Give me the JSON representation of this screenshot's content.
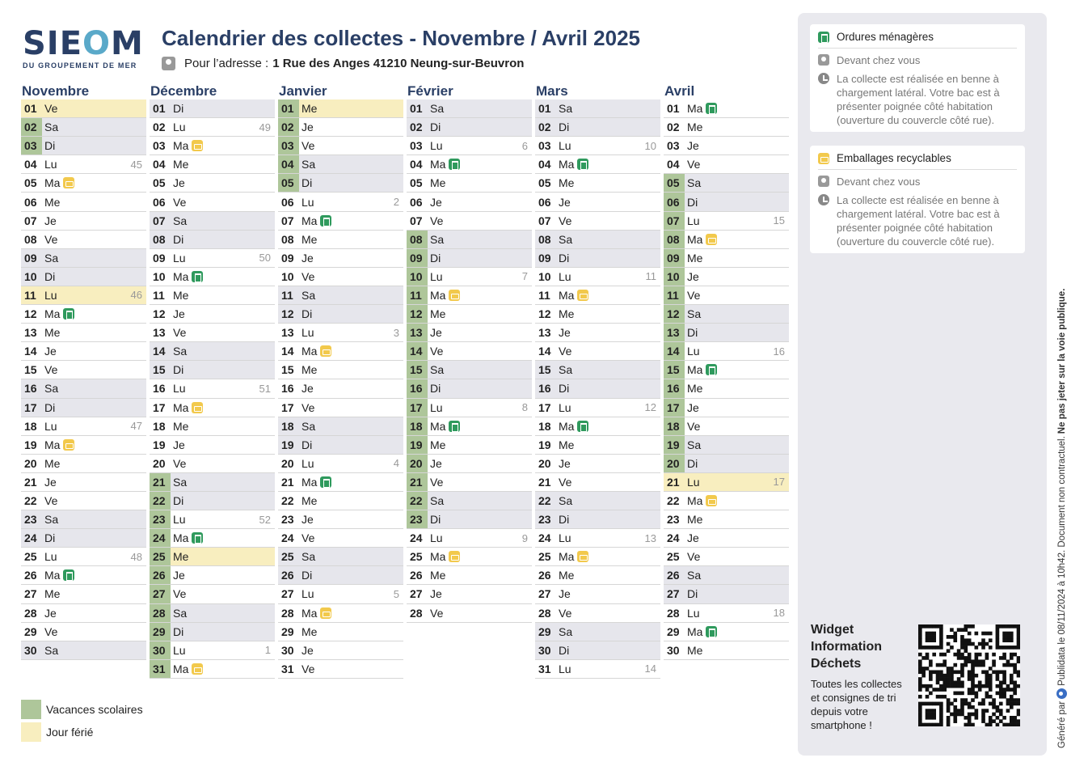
{
  "logo": {
    "main_pre": "SIE",
    "main_o": "O",
    "main_post": "M",
    "sub": "DU GROUPEMENT DE MER"
  },
  "title": "Calendrier des collectes - Novembre / Avril 2025",
  "address": {
    "label": "Pour l’adresse :",
    "value": "1 Rue des Anges 41210 Neung-sur-Beuvron"
  },
  "months": [
    {
      "name": "Novembre",
      "days": [
        {
          "n": "01",
          "d": "Ve",
          "h": 1
        },
        {
          "n": "02",
          "d": "Sa",
          "v": 1,
          "we": 1
        },
        {
          "n": "03",
          "d": "Di",
          "v": 1,
          "we": 1
        },
        {
          "n": "04",
          "d": "Lu",
          "wk": "45"
        },
        {
          "n": "05",
          "d": "Ma",
          "c": "em"
        },
        {
          "n": "06",
          "d": "Me"
        },
        {
          "n": "07",
          "d": "Je"
        },
        {
          "n": "08",
          "d": "Ve"
        },
        {
          "n": "09",
          "d": "Sa",
          "we": 1
        },
        {
          "n": "10",
          "d": "Di",
          "we": 1
        },
        {
          "n": "11",
          "d": "Lu",
          "wk": "46",
          "h": 1
        },
        {
          "n": "12",
          "d": "Ma",
          "c": "om"
        },
        {
          "n": "13",
          "d": "Me"
        },
        {
          "n": "14",
          "d": "Je"
        },
        {
          "n": "15",
          "d": "Ve"
        },
        {
          "n": "16",
          "d": "Sa",
          "we": 1
        },
        {
          "n": "17",
          "d": "Di",
          "we": 1
        },
        {
          "n": "18",
          "d": "Lu",
          "wk": "47"
        },
        {
          "n": "19",
          "d": "Ma",
          "c": "em"
        },
        {
          "n": "20",
          "d": "Me"
        },
        {
          "n": "21",
          "d": "Je"
        },
        {
          "n": "22",
          "d": "Ve"
        },
        {
          "n": "23",
          "d": "Sa",
          "we": 1
        },
        {
          "n": "24",
          "d": "Di",
          "we": 1
        },
        {
          "n": "25",
          "d": "Lu",
          "wk": "48"
        },
        {
          "n": "26",
          "d": "Ma",
          "c": "om"
        },
        {
          "n": "27",
          "d": "Me"
        },
        {
          "n": "28",
          "d": "Je"
        },
        {
          "n": "29",
          "d": "Ve"
        },
        {
          "n": "30",
          "d": "Sa",
          "we": 1
        }
      ]
    },
    {
      "name": "Décembre",
      "days": [
        {
          "n": "01",
          "d": "Di",
          "we": 1
        },
        {
          "n": "02",
          "d": "Lu",
          "wk": "49"
        },
        {
          "n": "03",
          "d": "Ma",
          "c": "em"
        },
        {
          "n": "04",
          "d": "Me"
        },
        {
          "n": "05",
          "d": "Je"
        },
        {
          "n": "06",
          "d": "Ve"
        },
        {
          "n": "07",
          "d": "Sa",
          "we": 1
        },
        {
          "n": "08",
          "d": "Di",
          "we": 1
        },
        {
          "n": "09",
          "d": "Lu",
          "wk": "50"
        },
        {
          "n": "10",
          "d": "Ma",
          "c": "om"
        },
        {
          "n": "11",
          "d": "Me"
        },
        {
          "n": "12",
          "d": "Je"
        },
        {
          "n": "13",
          "d": "Ve"
        },
        {
          "n": "14",
          "d": "Sa",
          "we": 1
        },
        {
          "n": "15",
          "d": "Di",
          "we": 1
        },
        {
          "n": "16",
          "d": "Lu",
          "wk": "51"
        },
        {
          "n": "17",
          "d": "Ma",
          "c": "em"
        },
        {
          "n": "18",
          "d": "Me"
        },
        {
          "n": "19",
          "d": "Je"
        },
        {
          "n": "20",
          "d": "Ve"
        },
        {
          "n": "21",
          "d": "Sa",
          "v": 1,
          "we": 1
        },
        {
          "n": "22",
          "d": "Di",
          "v": 1,
          "we": 1
        },
        {
          "n": "23",
          "d": "Lu",
          "wk": "52",
          "v": 1
        },
        {
          "n": "24",
          "d": "Ma",
          "c": "om",
          "v": 1
        },
        {
          "n": "25",
          "d": "Me",
          "v": 1,
          "h": 1
        },
        {
          "n": "26",
          "d": "Je",
          "v": 1
        },
        {
          "n": "27",
          "d": "Ve",
          "v": 1
        },
        {
          "n": "28",
          "d": "Sa",
          "v": 1,
          "we": 1
        },
        {
          "n": "29",
          "d": "Di",
          "v": 1,
          "we": 1
        },
        {
          "n": "30",
          "d": "Lu",
          "wk": "1",
          "v": 1
        },
        {
          "n": "31",
          "d": "Ma",
          "c": "em",
          "v": 1
        }
      ]
    },
    {
      "name": "Janvier",
      "days": [
        {
          "n": "01",
          "d": "Me",
          "v": 1,
          "h": 1
        },
        {
          "n": "02",
          "d": "Je",
          "v": 1
        },
        {
          "n": "03",
          "d": "Ve",
          "v": 1
        },
        {
          "n": "04",
          "d": "Sa",
          "v": 1,
          "we": 1
        },
        {
          "n": "05",
          "d": "Di",
          "v": 1,
          "we": 1
        },
        {
          "n": "06",
          "d": "Lu",
          "wk": "2"
        },
        {
          "n": "07",
          "d": "Ma",
          "c": "om"
        },
        {
          "n": "08",
          "d": "Me"
        },
        {
          "n": "09",
          "d": "Je"
        },
        {
          "n": "10",
          "d": "Ve"
        },
        {
          "n": "11",
          "d": "Sa",
          "we": 1
        },
        {
          "n": "12",
          "d": "Di",
          "we": 1
        },
        {
          "n": "13",
          "d": "Lu",
          "wk": "3"
        },
        {
          "n": "14",
          "d": "Ma",
          "c": "em"
        },
        {
          "n": "15",
          "d": "Me"
        },
        {
          "n": "16",
          "d": "Je"
        },
        {
          "n": "17",
          "d": "Ve"
        },
        {
          "n": "18",
          "d": "Sa",
          "we": 1
        },
        {
          "n": "19",
          "d": "Di",
          "we": 1
        },
        {
          "n": "20",
          "d": "Lu",
          "wk": "4"
        },
        {
          "n": "21",
          "d": "Ma",
          "c": "om"
        },
        {
          "n": "22",
          "d": "Me"
        },
        {
          "n": "23",
          "d": "Je"
        },
        {
          "n": "24",
          "d": "Ve"
        },
        {
          "n": "25",
          "d": "Sa",
          "we": 1
        },
        {
          "n": "26",
          "d": "Di",
          "we": 1
        },
        {
          "n": "27",
          "d": "Lu",
          "wk": "5"
        },
        {
          "n": "28",
          "d": "Ma",
          "c": "em"
        },
        {
          "n": "29",
          "d": "Me"
        },
        {
          "n": "30",
          "d": "Je"
        },
        {
          "n": "31",
          "d": "Ve"
        }
      ]
    },
    {
      "name": "Février",
      "days": [
        {
          "n": "01",
          "d": "Sa",
          "we": 1
        },
        {
          "n": "02",
          "d": "Di",
          "we": 1
        },
        {
          "n": "03",
          "d": "Lu",
          "wk": "6"
        },
        {
          "n": "04",
          "d": "Ma",
          "c": "om"
        },
        {
          "n": "05",
          "d": "Me"
        },
        {
          "n": "06",
          "d": "Je"
        },
        {
          "n": "07",
          "d": "Ve"
        },
        {
          "n": "08",
          "d": "Sa",
          "v": 1,
          "we": 1
        },
        {
          "n": "09",
          "d": "Di",
          "v": 1,
          "we": 1
        },
        {
          "n": "10",
          "d": "Lu",
          "wk": "7",
          "v": 1
        },
        {
          "n": "11",
          "d": "Ma",
          "c": "em",
          "v": 1
        },
        {
          "n": "12",
          "d": "Me",
          "v": 1
        },
        {
          "n": "13",
          "d": "Je",
          "v": 1
        },
        {
          "n": "14",
          "d": "Ve",
          "v": 1
        },
        {
          "n": "15",
          "d": "Sa",
          "v": 1,
          "we": 1
        },
        {
          "n": "16",
          "d": "Di",
          "v": 1,
          "we": 1
        },
        {
          "n": "17",
          "d": "Lu",
          "wk": "8",
          "v": 1
        },
        {
          "n": "18",
          "d": "Ma",
          "c": "om",
          "v": 1
        },
        {
          "n": "19",
          "d": "Me",
          "v": 1
        },
        {
          "n": "20",
          "d": "Je",
          "v": 1
        },
        {
          "n": "21",
          "d": "Ve",
          "v": 1
        },
        {
          "n": "22",
          "d": "Sa",
          "v": 1,
          "we": 1
        },
        {
          "n": "23",
          "d": "Di",
          "v": 1,
          "we": 1
        },
        {
          "n": "24",
          "d": "Lu",
          "wk": "9"
        },
        {
          "n": "25",
          "d": "Ma",
          "c": "em"
        },
        {
          "n": "26",
          "d": "Me"
        },
        {
          "n": "27",
          "d": "Je"
        },
        {
          "n": "28",
          "d": "Ve"
        }
      ]
    },
    {
      "name": "Mars",
      "days": [
        {
          "n": "01",
          "d": "Sa",
          "we": 1
        },
        {
          "n": "02",
          "d": "Di",
          "we": 1
        },
        {
          "n": "03",
          "d": "Lu",
          "wk": "10"
        },
        {
          "n": "04",
          "d": "Ma",
          "c": "om"
        },
        {
          "n": "05",
          "d": "Me"
        },
        {
          "n": "06",
          "d": "Je"
        },
        {
          "n": "07",
          "d": "Ve"
        },
        {
          "n": "08",
          "d": "Sa",
          "we": 1
        },
        {
          "n": "09",
          "d": "Di",
          "we": 1
        },
        {
          "n": "10",
          "d": "Lu",
          "wk": "11"
        },
        {
          "n": "11",
          "d": "Ma",
          "c": "em"
        },
        {
          "n": "12",
          "d": "Me"
        },
        {
          "n": "13",
          "d": "Je"
        },
        {
          "n": "14",
          "d": "Ve"
        },
        {
          "n": "15",
          "d": "Sa",
          "we": 1
        },
        {
          "n": "16",
          "d": "Di",
          "we": 1
        },
        {
          "n": "17",
          "d": "Lu",
          "wk": "12"
        },
        {
          "n": "18",
          "d": "Ma",
          "c": "om"
        },
        {
          "n": "19",
          "d": "Me"
        },
        {
          "n": "20",
          "d": "Je"
        },
        {
          "n": "21",
          "d": "Ve"
        },
        {
          "n": "22",
          "d": "Sa",
          "we": 1
        },
        {
          "n": "23",
          "d": "Di",
          "we": 1
        },
        {
          "n": "24",
          "d": "Lu",
          "wk": "13"
        },
        {
          "n": "25",
          "d": "Ma",
          "c": "em"
        },
        {
          "n": "26",
          "d": "Me"
        },
        {
          "n": "27",
          "d": "Je"
        },
        {
          "n": "28",
          "d": "Ve"
        },
        {
          "n": "29",
          "d": "Sa",
          "we": 1
        },
        {
          "n": "30",
          "d": "Di",
          "we": 1
        },
        {
          "n": "31",
          "d": "Lu",
          "wk": "14"
        }
      ]
    },
    {
      "name": "Avril",
      "days": [
        {
          "n": "01",
          "d": "Ma",
          "c": "om"
        },
        {
          "n": "02",
          "d": "Me"
        },
        {
          "n": "03",
          "d": "Je"
        },
        {
          "n": "04",
          "d": "Ve"
        },
        {
          "n": "05",
          "d": "Sa",
          "v": 1,
          "we": 1
        },
        {
          "n": "06",
          "d": "Di",
          "v": 1,
          "we": 1
        },
        {
          "n": "07",
          "d": "Lu",
          "wk": "15",
          "v": 1
        },
        {
          "n": "08",
          "d": "Ma",
          "c": "em",
          "v": 1
        },
        {
          "n": "09",
          "d": "Me",
          "v": 1
        },
        {
          "n": "10",
          "d": "Je",
          "v": 1
        },
        {
          "n": "11",
          "d": "Ve",
          "v": 1
        },
        {
          "n": "12",
          "d": "Sa",
          "v": 1,
          "we": 1
        },
        {
          "n": "13",
          "d": "Di",
          "v": 1,
          "we": 1
        },
        {
          "n": "14",
          "d": "Lu",
          "wk": "16",
          "v": 1
        },
        {
          "n": "15",
          "d": "Ma",
          "c": "om",
          "v": 1
        },
        {
          "n": "16",
          "d": "Me",
          "v": 1
        },
        {
          "n": "17",
          "d": "Je",
          "v": 1
        },
        {
          "n": "18",
          "d": "Ve",
          "v": 1
        },
        {
          "n": "19",
          "d": "Sa",
          "v": 1,
          "we": 1
        },
        {
          "n": "20",
          "d": "Di",
          "v": 1,
          "we": 1
        },
        {
          "n": "21",
          "d": "Lu",
          "wk": "17",
          "h": 1
        },
        {
          "n": "22",
          "d": "Ma",
          "c": "em"
        },
        {
          "n": "23",
          "d": "Me"
        },
        {
          "n": "24",
          "d": "Je"
        },
        {
          "n": "25",
          "d": "Ve"
        },
        {
          "n": "26",
          "d": "Sa",
          "we": 1
        },
        {
          "n": "27",
          "d": "Di",
          "we": 1
        },
        {
          "n": "28",
          "d": "Lu",
          "wk": "18"
        },
        {
          "n": "29",
          "d": "Ma",
          "c": "om"
        },
        {
          "n": "30",
          "d": "Me"
        }
      ]
    }
  ],
  "legend": {
    "vacances": "Vacances scolaires",
    "ferie": "Jour férié"
  },
  "cards": [
    {
      "icon": "trash-icon",
      "type": "om",
      "title": "Ordures ménagères",
      "place": "Devant chez vous",
      "info": "La collecte est réalisée en benne à chargement latéral. Votre bac est à présenter poignée côté habitation (ouverture du couvercle côté rue)."
    },
    {
      "icon": "recycle-bin-icon",
      "type": "em",
      "title": "Emballages recyclables",
      "place": "Devant chez vous",
      "info": "La collecte est réalisée en benne à chargement latéral. Votre bac est à présenter poignée côté habitation (ouverture du couvercle côté rue)."
    }
  ],
  "widget": {
    "title": "Widget Information Déchets",
    "text": "Toutes les collectes et consignes de tri depuis votre smartphone !"
  },
  "footer": {
    "generated_by": "Généré par",
    "brand": "Publidata",
    "date_text": "le 08/11/2024 à 10h42. Document non contractuel.",
    "warning": "Ne pas jeter sur la voie publique."
  },
  "colors": {
    "vacances": "#aec69a",
    "ferie": "#f8eebf",
    "weekend": "#e6e6ec",
    "om": "#2f9a5d",
    "em": "#f2c94c",
    "title": "#2a3f66"
  }
}
